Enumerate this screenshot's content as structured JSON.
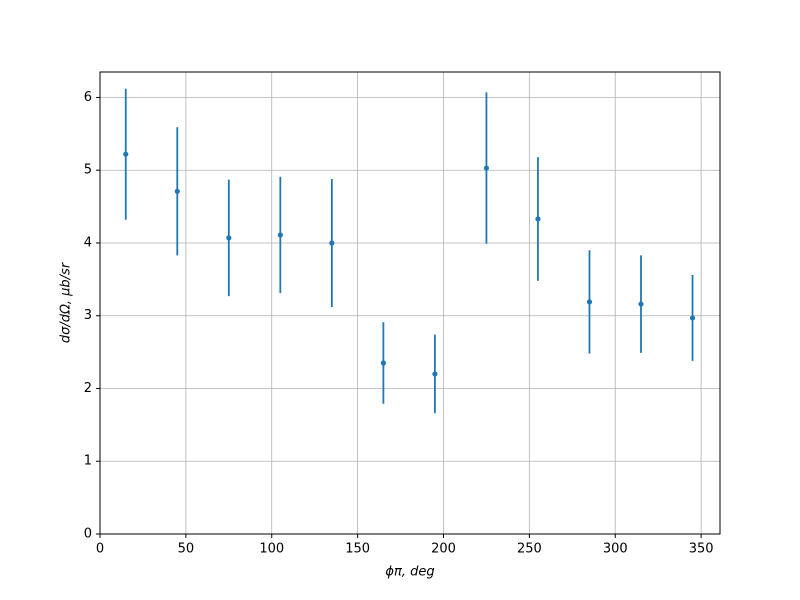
{
  "chart_data": {
    "type": "errorbar",
    "x_label": "ϕπ, deg",
    "y_label": "dσ/dΩ, μb/sr",
    "x": [
      15,
      45,
      75,
      105,
      135,
      165,
      195,
      225,
      255,
      285,
      315,
      345
    ],
    "values": [
      5.22,
      4.71,
      4.07,
      4.11,
      4.0,
      2.35,
      2.2,
      5.03,
      4.33,
      3.19,
      3.16,
      2.97
    ],
    "errors": [
      0.9,
      0.88,
      0.8,
      0.8,
      0.88,
      0.56,
      0.54,
      1.04,
      0.85,
      0.71,
      0.67,
      0.59
    ],
    "color": "#1f77b4",
    "xlim": [
      0,
      361
    ],
    "ylim": [
      0,
      6.35
    ],
    "xticks": [
      0,
      50,
      100,
      150,
      200,
      250,
      300,
      350
    ],
    "yticks": [
      0,
      1,
      2,
      3,
      4,
      5,
      6
    ],
    "grid": true
  }
}
